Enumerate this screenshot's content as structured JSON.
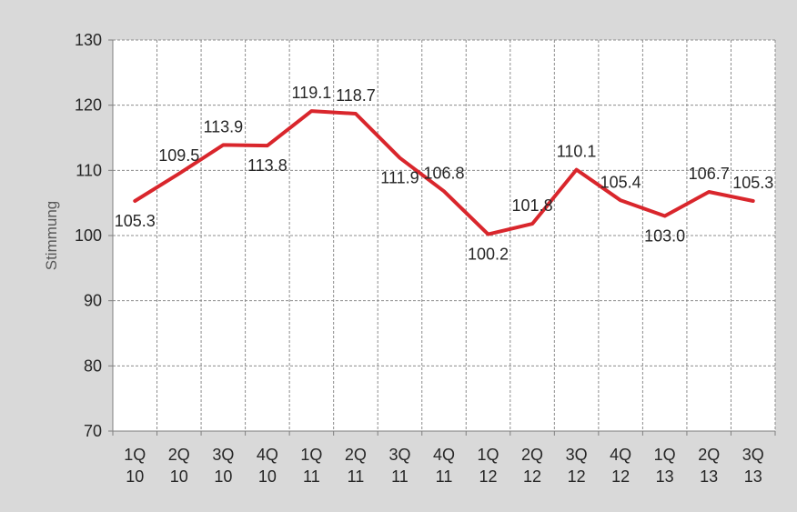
{
  "chart_data": {
    "type": "line",
    "title": "",
    "xlabel": "",
    "ylabel": "Stimmung",
    "ylim": [
      70,
      130
    ],
    "yticks": [
      70,
      80,
      90,
      100,
      110,
      120,
      130
    ],
    "grid": true,
    "legend": "none",
    "categories": [
      [
        "1Q",
        "10"
      ],
      [
        "2Q",
        "10"
      ],
      [
        "3Q",
        "10"
      ],
      [
        "4Q",
        "10"
      ],
      [
        "1Q",
        "11"
      ],
      [
        "2Q",
        "11"
      ],
      [
        "3Q",
        "11"
      ],
      [
        "4Q",
        "11"
      ],
      [
        "1Q",
        "12"
      ],
      [
        "2Q",
        "12"
      ],
      [
        "3Q",
        "12"
      ],
      [
        "4Q",
        "12"
      ],
      [
        "1Q",
        "13"
      ],
      [
        "2Q",
        "13"
      ],
      [
        "3Q",
        "13"
      ]
    ],
    "series": [
      {
        "color": "#d9262c",
        "values": [
          105.3,
          109.5,
          113.9,
          113.8,
          119.1,
          118.7,
          111.9,
          106.8,
          100.2,
          101.8,
          110.1,
          105.4,
          103.0,
          106.7,
          105.3
        ],
        "labels": [
          "105.3",
          "109.5",
          "113.9",
          "113.8",
          "119.1",
          "118.7",
          "111.9",
          "106.8",
          "100.2",
          "101.8",
          "110.1",
          "105.4",
          "103.0",
          "106.7",
          "105.3"
        ]
      }
    ]
  }
}
